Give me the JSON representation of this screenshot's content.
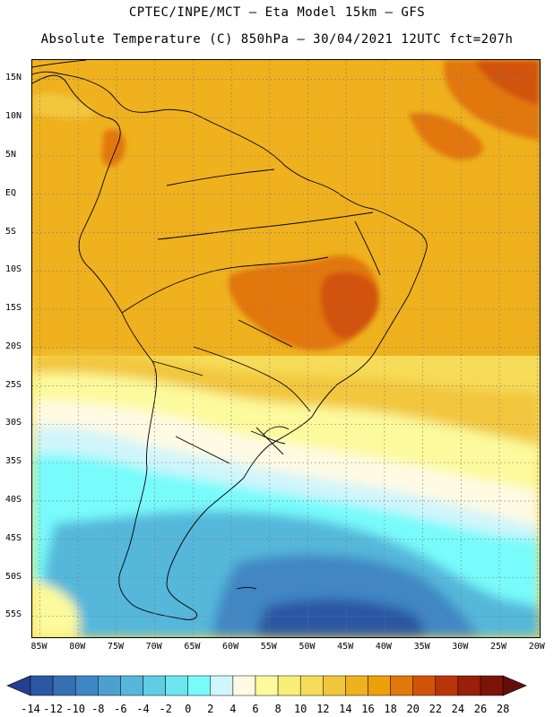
{
  "header": {
    "line1": "CPTEC/INPE/MCT —  Eta Model 15km — GFS",
    "line2": "Absolute Temperature (C) 850hPa — 30/04/2021 12UTC fct=207h"
  },
  "map": {
    "lat_labels": [
      "15N",
      "10N",
      "5N",
      "EQ",
      "5S",
      "10S",
      "15S",
      "20S",
      "25S",
      "30S",
      "35S",
      "40S",
      "45S",
      "50S",
      "55S"
    ],
    "lat_values": [
      15,
      10,
      5,
      0,
      -5,
      -10,
      -15,
      -20,
      -25,
      -30,
      -35,
      -40,
      -45,
      -50,
      -55
    ],
    "lon_labels": [
      "85W",
      "80W",
      "75W",
      "70W",
      "65W",
      "60W",
      "55W",
      "50W",
      "45W",
      "40W",
      "35W",
      "30W",
      "25W",
      "20W"
    ],
    "lon_values": [
      -85,
      -80,
      -75,
      -70,
      -65,
      -60,
      -55,
      -50,
      -45,
      -40,
      -35,
      -30,
      -25,
      -20
    ],
    "lat_range": [
      -58,
      17.5
    ],
    "lon_range": [
      -86,
      -19.5
    ],
    "grid": "dotted"
  },
  "colorbar": {
    "labels": [
      "-14",
      "-12",
      "-10",
      "-8",
      "-6",
      "-4",
      "-2",
      "0",
      "2",
      "4",
      "6",
      "8",
      "10",
      "12",
      "14",
      "16",
      "18",
      "20",
      "22",
      "24",
      "26",
      "28"
    ],
    "values": [
      -14,
      -12,
      -10,
      -8,
      -6,
      -4,
      -2,
      0,
      2,
      4,
      6,
      8,
      10,
      12,
      14,
      16,
      18,
      20,
      22,
      24,
      26,
      28
    ],
    "colors": [
      "#233f8f",
      "#2b57a3",
      "#3570b5",
      "#3f87c4",
      "#4ba0cf",
      "#55b7da",
      "#5fcde4",
      "#6de5ef",
      "#78fbfb",
      "#d0f5fb",
      "#fffae3",
      "#fcfa9c",
      "#f8ee76",
      "#f6dc58",
      "#f2c63c",
      "#efb11e",
      "#eda00a",
      "#e2770c",
      "#d15309",
      "#b93508",
      "#9a1e0a",
      "#7c1408",
      "#620f0b"
    ]
  }
}
